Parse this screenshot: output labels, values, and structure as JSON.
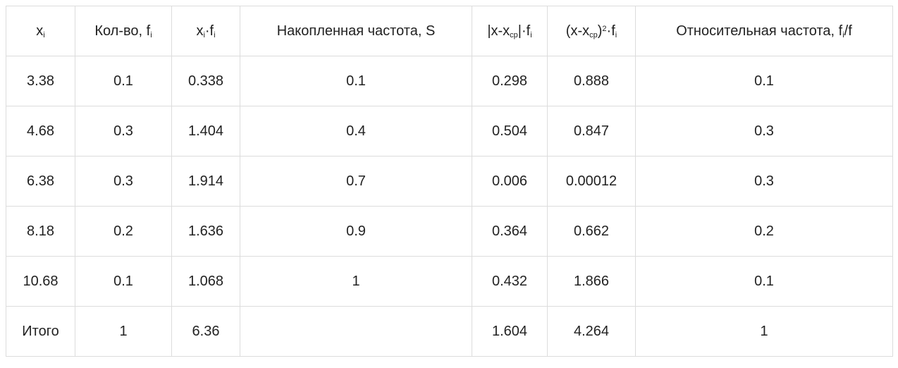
{
  "table": {
    "header": [
      [
        {
          "text": "x"
        },
        {
          "sub": "i"
        }
      ],
      [
        {
          "text": "Кол-во, f"
        },
        {
          "sub": "i"
        }
      ],
      [
        {
          "text": "x"
        },
        {
          "sub": "i"
        },
        {
          "text": "·f"
        },
        {
          "sub": "i"
        }
      ],
      [
        {
          "text": "Накопленная частота, S"
        }
      ],
      [
        {
          "text": "|x-x"
        },
        {
          "sub": "ср"
        },
        {
          "text": "|·f"
        },
        {
          "sub": "i"
        }
      ],
      [
        {
          "text": "(x-x"
        },
        {
          "sub": "ср"
        },
        {
          "text": ")"
        },
        {
          "sup": "2"
        },
        {
          "text": "·f"
        },
        {
          "sub": "i"
        }
      ],
      [
        {
          "text": "Относительная частота, f"
        },
        {
          "sub": "i"
        },
        {
          "text": "/f"
        }
      ]
    ],
    "rows": [
      [
        "3.38",
        "0.1",
        "0.338",
        "0.1",
        "0.298",
        "0.888",
        "0.1"
      ],
      [
        "4.68",
        "0.3",
        "1.404",
        "0.4",
        "0.504",
        "0.847",
        "0.3"
      ],
      [
        "6.38",
        "0.3",
        "1.914",
        "0.7",
        "0.006",
        "0.00012",
        "0.3"
      ],
      [
        "8.18",
        "0.2",
        "1.636",
        "0.9",
        "0.364",
        "0.662",
        "0.2"
      ],
      [
        "10.68",
        "0.1",
        "1.068",
        "1",
        "0.432",
        "1.866",
        "0.1"
      ],
      [
        "Итого",
        "1",
        "6.36",
        null,
        "1.604",
        "4.264",
        "1"
      ]
    ]
  }
}
